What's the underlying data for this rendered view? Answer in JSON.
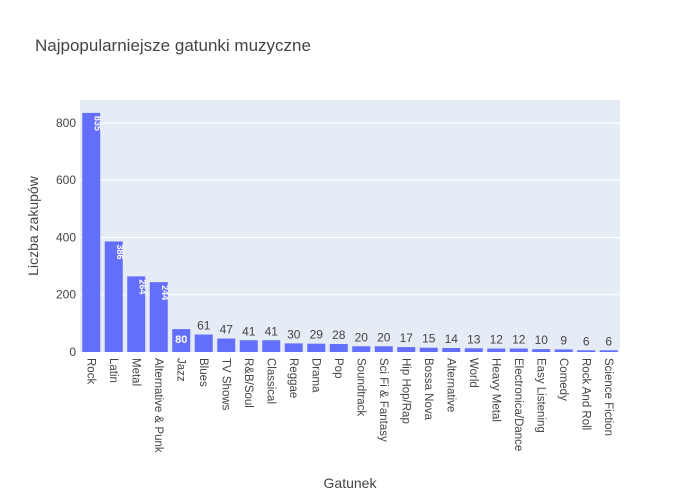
{
  "chart_data": {
    "type": "bar",
    "title": "Najpopularniejsze gatunki muzyczne",
    "xlabel": "Gatunek",
    "ylabel": "Liczba zakupów",
    "categories": [
      "Rock",
      "Latin",
      "Metal",
      "Alternative & Punk",
      "Jazz",
      "Blues",
      "TV Shows",
      "R&B/Soul",
      "Classical",
      "Reggae",
      "Drama",
      "Pop",
      "Soundtrack",
      "Sci Fi & Fantasy",
      "Hip Hop/Rap",
      "Bossa Nova",
      "Alternative",
      "World",
      "Heavy Metal",
      "Electronica/Dance",
      "Easy Listening",
      "Comedy",
      "Rock And Roll",
      "Science Fiction"
    ],
    "values": [
      835,
      386,
      264,
      244,
      80,
      61,
      47,
      41,
      41,
      30,
      29,
      28,
      20,
      20,
      17,
      15,
      14,
      13,
      12,
      12,
      10,
      9,
      6,
      6
    ],
    "ylim": [
      0,
      880
    ],
    "yticks": [
      0,
      200,
      400,
      600,
      800
    ],
    "grid": true,
    "colors": {
      "bar": "#636efa",
      "plot_bg": "#e5ecf6",
      "text": "#444444",
      "title": "#444444",
      "grid": "#ffffff"
    }
  }
}
